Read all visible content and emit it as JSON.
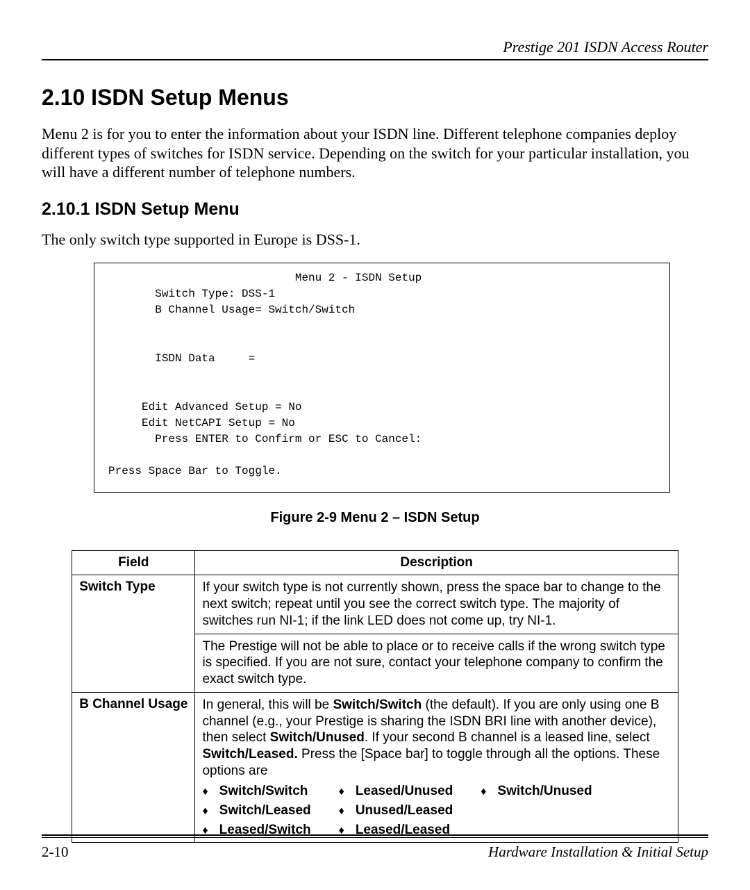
{
  "header": {
    "running_title": "Prestige 201 ISDN Access Router"
  },
  "section": {
    "h1": "2.10  ISDN Setup Menus",
    "intro": "Menu 2 is for you to enter the information about your ISDN line. Different telephone companies deploy different types of switches for ISDN service. Depending on the switch for your particular installation, you will have a different number of telephone numbers.",
    "h2": "2.10.1 ISDN Setup Menu",
    "subtext": "The only switch type supported in Europe is DSS-1."
  },
  "terminal": {
    "title": "Menu 2 - ISDN Setup",
    "switch_type_line": "Switch Type: DSS-1",
    "bchannel_line": "B Channel Usage= Switch/Switch",
    "isdn_data_line": "ISDN Data     =",
    "edit_adv_line": "Edit Advanced Setup = No",
    "edit_netcapi_line": "Edit NetCAPI Setup = No",
    "press_enter_line": "Press ENTER to Confirm or ESC to Cancel:",
    "toggle_line": "Press Space Bar to Toggle."
  },
  "figure_caption": "Figure 2-9 Menu 2 – ISDN Setup",
  "table": {
    "columns": [
      "Field",
      "Description"
    ],
    "rows": [
      {
        "field": "Switch Type",
        "desc_p1": "If your switch type is not currently shown, press the space bar to change to the next switch; repeat until you see the correct switch type. The majority of switches run NI-1; if the link LED does not come up, try NI-1.",
        "desc_p2": "The Prestige will not be able to place or to receive calls if the wrong switch type is specified. If you are not sure, contact your telephone company to confirm the exact switch type."
      },
      {
        "field": "B Channel Usage",
        "desc_prefix": "In general, this will be ",
        "bold1": "Switch/Switch",
        "desc_mid1": " (the default). If you are only using one B channel (e.g., your Prestige is sharing the ISDN BRI line with another device), then select ",
        "bold2": "Switch/Unused",
        "desc_mid2": ". If your second B channel is a leased line, select ",
        "bold3": "Switch/Leased.",
        "desc_suffix": " Press the [Space bar] to toggle through all the options. These options are",
        "options_col1": [
          "Switch/Switch",
          "Switch/Leased",
          "Leased/Switch"
        ],
        "options_col2": [
          "Leased/Unused",
          "Unused/Leased",
          "Leased/Leased"
        ],
        "options_col3": [
          "Switch/Unused"
        ]
      }
    ]
  },
  "footer": {
    "page_number": "2-10",
    "right_text": "Hardware Installation & Initial Setup"
  }
}
